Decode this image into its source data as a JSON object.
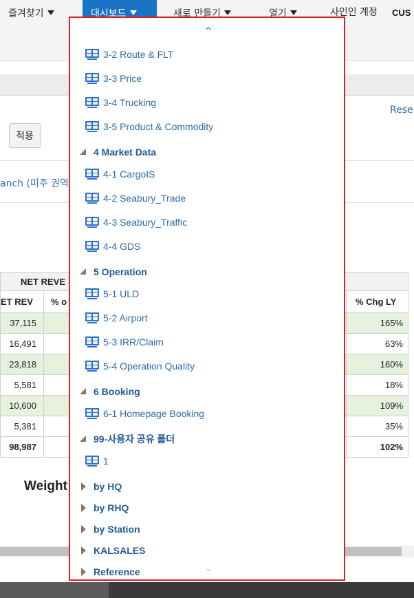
{
  "nav": {
    "favorites": "즐겨찾기",
    "dashboard": "대시보드",
    "new": "새로 만들기",
    "open": "열기",
    "signed_in": "사인인 계정",
    "user": "CUS"
  },
  "page": {
    "reset": "Rese",
    "apply": "적용",
    "branch_text": "anch (미주 권역",
    "table_header": "NET REVE",
    "col_net_rev": "ET REV",
    "col_pct": "% o",
    "col_chg": "% Chg LY",
    "rows": [
      {
        "net": "37,115",
        "chg": "165%",
        "shade": true
      },
      {
        "net": "16,491",
        "chg": "63%",
        "shade": false
      },
      {
        "net": "23,818",
        "chg": "160%",
        "shade": true
      },
      {
        "net": "5,581",
        "chg": "18%",
        "shade": false
      },
      {
        "net": "10,600",
        "chg": "109%",
        "shade": true
      },
      {
        "net": "5,381",
        "chg": "35%",
        "shade": false
      },
      {
        "net": "98,987",
        "chg": "102%",
        "shade": false,
        "total": true
      }
    ],
    "weight_title": "Weight"
  },
  "dropdown": {
    "scroll_up": "^",
    "scroll_down": "⌄",
    "items": [
      {
        "kind": "item",
        "label": "3-2 Route & FLT"
      },
      {
        "kind": "item",
        "label": "3-3 Price"
      },
      {
        "kind": "item",
        "label": "3-4 Trucking"
      },
      {
        "kind": "item",
        "label": "3-5 Product & Commodity"
      },
      {
        "kind": "folder-open",
        "label": "4 Market Data"
      },
      {
        "kind": "item",
        "label": "4-1 CargoIS"
      },
      {
        "kind": "item",
        "label": "4-2 Seabury_Trade"
      },
      {
        "kind": "item",
        "label": "4-3 Seabury_Traffic"
      },
      {
        "kind": "item",
        "label": "4-4 GDS"
      },
      {
        "kind": "folder-open",
        "label": "5 Operation"
      },
      {
        "kind": "item",
        "label": "5-1 ULD"
      },
      {
        "kind": "item",
        "label": "5-2 Airport"
      },
      {
        "kind": "item",
        "label": "5-3 IRR/Claim"
      },
      {
        "kind": "item",
        "label": "5-4 Operation Quality"
      },
      {
        "kind": "folder-open",
        "label": "6 Booking"
      },
      {
        "kind": "item",
        "label": "6-1 Homepage Booking"
      },
      {
        "kind": "folder-open",
        "label": "99-사용자 공유 폴더"
      },
      {
        "kind": "item",
        "label": "1"
      },
      {
        "kind": "folder-closed",
        "label": "by HQ"
      },
      {
        "kind": "folder-closed",
        "label": "by RHQ"
      },
      {
        "kind": "folder-closed",
        "label": "by Station"
      },
      {
        "kind": "folder-closed",
        "label": "KALSALES"
      },
      {
        "kind": "folder-closed",
        "label": "Reference"
      }
    ]
  }
}
